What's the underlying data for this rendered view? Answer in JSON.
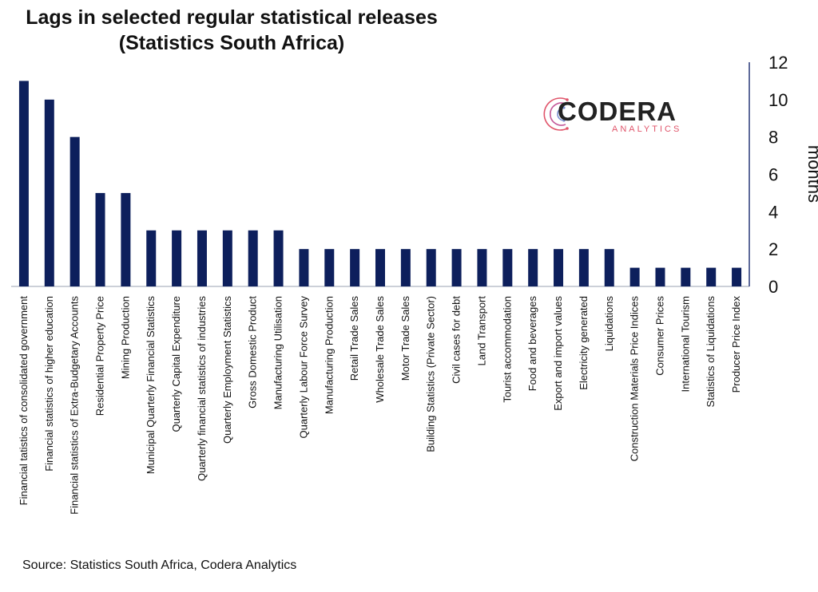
{
  "title_line1": "Lags in selected regular statistical releases",
  "title_line2": "(Statistics South Africa)",
  "source": "Source: Statistics South Africa, Codera Analytics",
  "logo": {
    "word": "CODERA",
    "sub": "ANALYTICS"
  },
  "colors": {
    "bar": "#0d1f5c",
    "axis": "#2a3a7a",
    "text": "#111111"
  },
  "chart_data": {
    "type": "bar",
    "title": "Lags in selected regular statistical releases (Statistics South Africa)",
    "ylabel": "months",
    "ylim": [
      0,
      12
    ],
    "yticks": [
      0,
      2,
      4,
      6,
      8,
      10,
      12
    ],
    "y_axis_side": "right",
    "grid": false,
    "categories": [
      "Financial tatistics of consolidated government",
      "Financial statistics of higher education",
      "Financial statistics of Extra-Budgetary Accounts",
      "Residential Property Price",
      "Mining Production",
      "Municipal Quarterly Financial Statistics",
      "Quarterly Capital Expenditure",
      "Quarterly financial statistics of industries",
      "Quarterly Employment Statistics",
      "Gross Domestic Product",
      "Manufacturing Utilisation",
      "Quarterly Labour Force Survey",
      "Manufacturing Production",
      "Retail Trade Sales",
      "Wholesale Trade Sales",
      "Motor Trade Sales",
      "Building Statistics (Private Sector)",
      "Civil cases for debt",
      "Land Transport",
      "Tourist accommodation",
      "Food and beverages",
      "Export and import values",
      "Electricity generated",
      "Liquidations",
      "Construction Materials Price Indices",
      "Consumer Prices",
      "International Tourism",
      "Statistics of Liquidations",
      "Producer Price Index"
    ],
    "values": [
      11,
      10,
      8,
      5,
      5,
      3,
      3,
      3,
      3,
      3,
      3,
      2,
      2,
      2,
      2,
      2,
      2,
      2,
      2,
      2,
      2,
      2,
      2,
      2,
      1,
      1,
      1,
      1,
      1
    ]
  }
}
